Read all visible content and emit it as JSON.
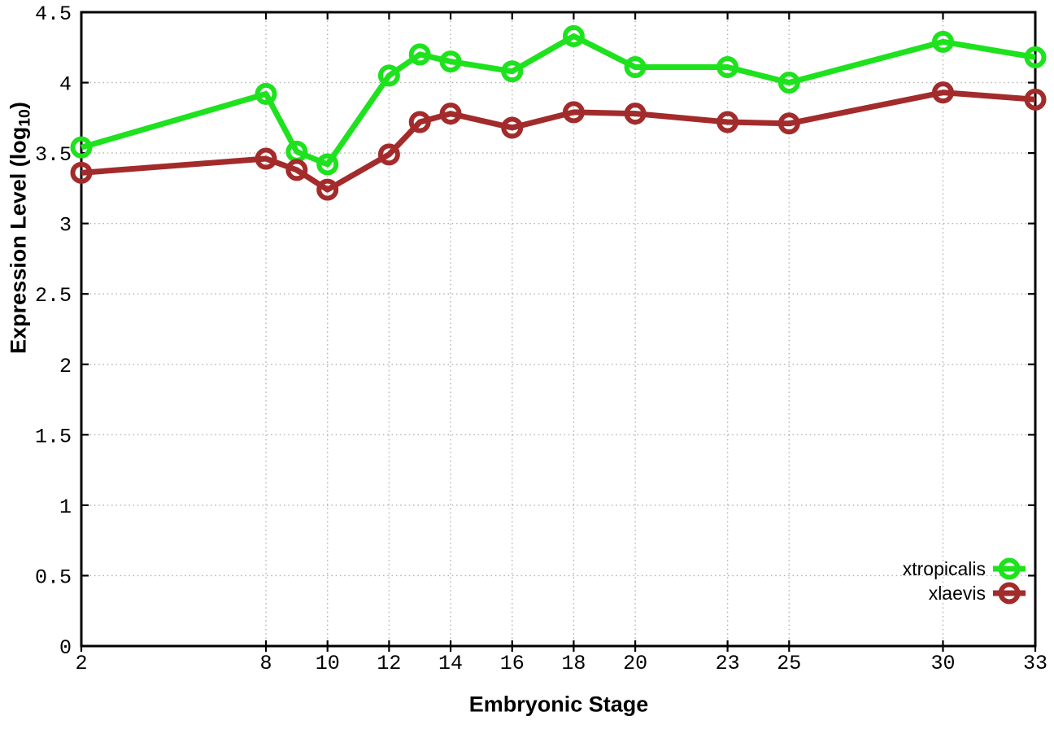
{
  "chart_data": {
    "type": "line",
    "title": "",
    "xlabel": "Embryonic Stage",
    "ylabel": "Expression Level (log10)",
    "ylabel_parts": {
      "prefix": "Expression Level (log",
      "subscript": "10",
      "suffix": ")"
    },
    "xlim": [
      2,
      33
    ],
    "ylim": [
      0,
      4.5
    ],
    "x_ticks": [
      2,
      8,
      10,
      12,
      14,
      16,
      18,
      20,
      23,
      25,
      30,
      33
    ],
    "y_ticks": [
      0,
      0.5,
      1,
      1.5,
      2,
      2.5,
      3,
      3.5,
      4,
      4.5
    ],
    "grid": true,
    "legend_position": "bottom-right",
    "x": [
      2,
      8,
      9,
      10,
      12,
      13,
      14,
      16,
      18,
      20,
      23,
      25,
      30,
      33
    ],
    "series": [
      {
        "name": "xtropicalis",
        "color": "#1de21d",
        "values": [
          3.54,
          3.92,
          3.51,
          3.42,
          4.05,
          4.2,
          4.15,
          4.08,
          4.33,
          4.11,
          4.11,
          4.0,
          4.29,
          4.18
        ]
      },
      {
        "name": "xlaevis",
        "color": "#a32b2b",
        "values": [
          3.36,
          3.46,
          3.38,
          3.24,
          3.49,
          3.72,
          3.78,
          3.68,
          3.79,
          3.78,
          3.72,
          3.71,
          3.93,
          3.88
        ]
      }
    ],
    "style": {
      "grid_color": "#b0b0b0",
      "axis_color": "#000000",
      "background": "#ffffff"
    }
  }
}
